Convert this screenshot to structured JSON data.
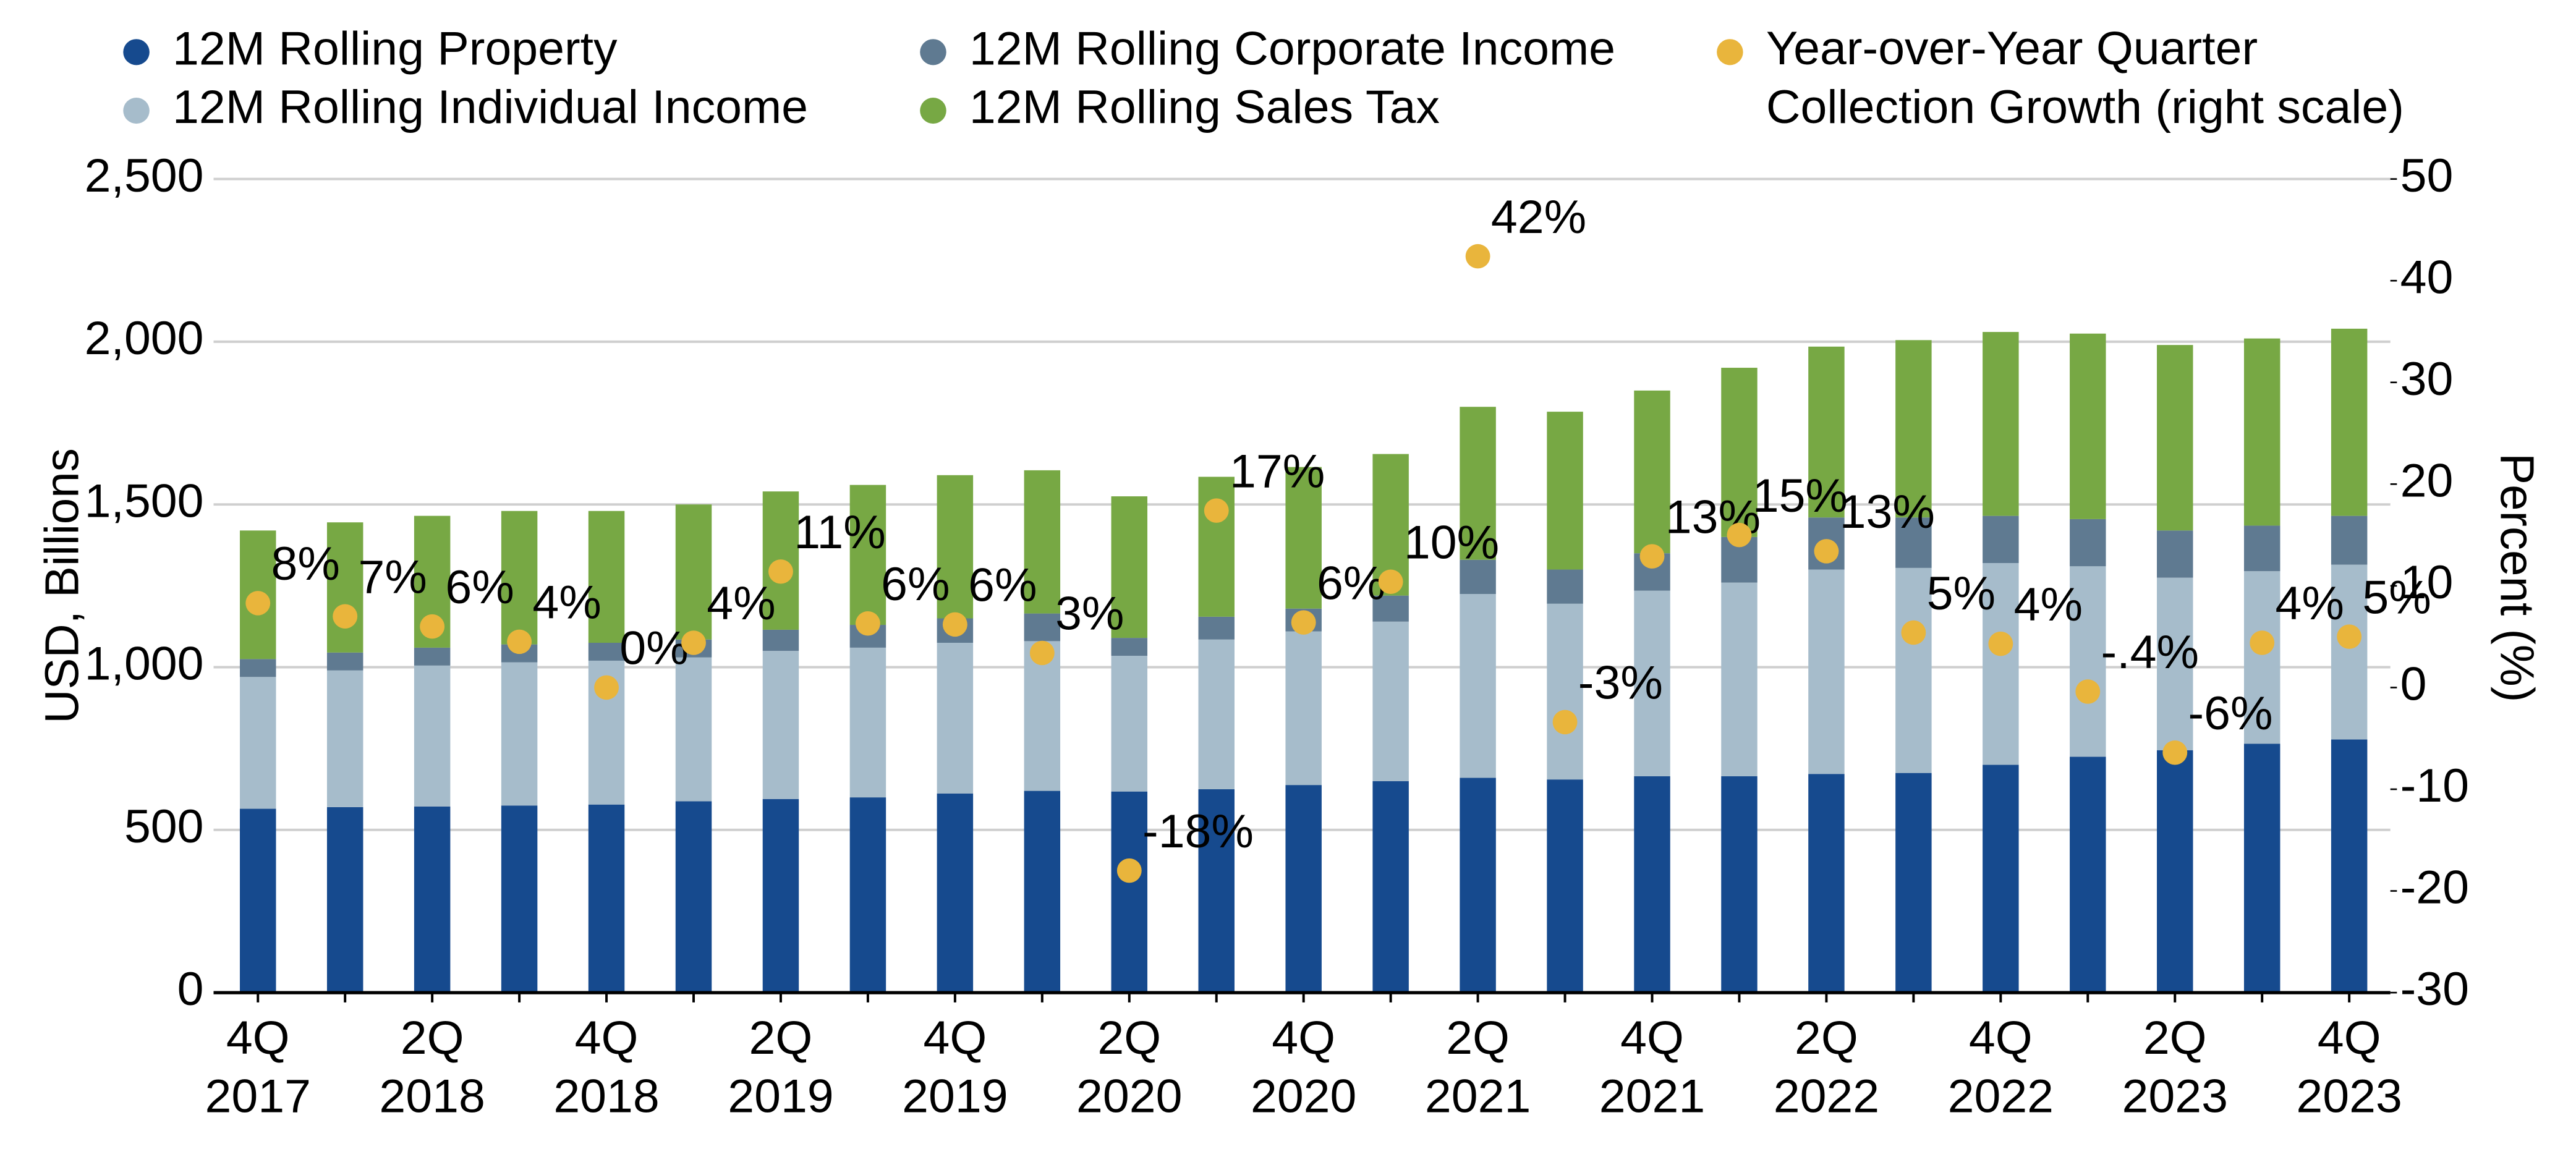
{
  "chart_data": {
    "type": "bar",
    "stacked": true,
    "categories": [
      "4Q\n2017",
      null,
      "2Q\n2018",
      null,
      "4Q\n2018",
      null,
      "2Q\n2019",
      null,
      "4Q\n2019",
      null,
      "2Q\n2020",
      null,
      "4Q\n2020",
      null,
      "2Q\n2021",
      null,
      "4Q\n2021",
      null,
      "2Q\n2022",
      null,
      "4Q\n2022",
      null,
      "2Q\n2023",
      null,
      "4Q\n2023"
    ],
    "series": [
      {
        "name": "12M Rolling Property",
        "color": "#164a8e",
        "values": [
          565,
          570,
          572,
          575,
          578,
          588,
          595,
          600,
          612,
          620,
          618,
          625,
          638,
          650,
          660,
          655,
          665,
          665,
          672,
          675,
          700,
          725,
          745,
          765,
          778
        ]
      },
      {
        "name": "12M Rolling Individual Income",
        "color": "#a6bccb",
        "values": [
          405,
          420,
          433,
          440,
          442,
          442,
          455,
          460,
          463,
          460,
          417,
          460,
          472,
          490,
          565,
          540,
          570,
          595,
          628,
          630,
          620,
          585,
          530,
          530,
          537
        ]
      },
      {
        "name": "12M Rolling Corporate Income",
        "color": "#5f7a91",
        "values": [
          55,
          55,
          55,
          55,
          55,
          55,
          65,
          70,
          75,
          85,
          55,
          70,
          70,
          80,
          105,
          105,
          115,
          140,
          160,
          155,
          145,
          145,
          145,
          140,
          150
        ]
      },
      {
        "name": "12M Rolling Sales Tax",
        "color": "#77a844",
        "values": [
          395,
          400,
          405,
          410,
          405,
          415,
          425,
          430,
          440,
          440,
          435,
          430,
          435,
          435,
          470,
          485,
          500,
          520,
          525,
          545,
          565,
          570,
          570,
          575,
          575
        ]
      },
      {
        "name": "Year-over-Year Quarter\nCollection Growth (right scale)",
        "color": "#e9b53c",
        "type": "scatter",
        "axis": "y2",
        "values": [
          8.3,
          7,
          6,
          4.5,
          0,
          4.4,
          11.4,
          6.3,
          6.2,
          3.4,
          -18,
          17.4,
          6.4,
          10.4,
          42.4,
          -3.4,
          12.9,
          15,
          13.4,
          5.4,
          4.3,
          -0.4,
          -6.4,
          4.4,
          5
        ],
        "value_labels": [
          "8%",
          "7%",
          "6%",
          "4%",
          "0%",
          "4%",
          "11%",
          "6%",
          "6%",
          "3%",
          "-18%",
          "17%",
          "6%",
          "10%",
          "42%",
          "-3%",
          "13%",
          "15%",
          "13%",
          "5%",
          "4%",
          "-.4%",
          "-6%",
          "4%",
          "5%"
        ]
      }
    ],
    "y_label": "USD, Billions",
    "y2_label": "Percent (%)",
    "ylim": [
      0,
      2500
    ],
    "yticks": [
      0,
      500,
      {
        "value": 1000,
        "label": "1,000"
      },
      {
        "value": 1500,
        "label": "1,500"
      },
      {
        "value": 2000,
        "label": "2,000"
      },
      {
        "value": 2500,
        "label": "2,500"
      }
    ],
    "y2lim": [
      -30,
      50
    ],
    "y2ticks": [
      -30,
      -20,
      -10,
      0,
      10,
      20,
      30,
      40,
      50
    ],
    "grid": true,
    "legend": "top"
  }
}
